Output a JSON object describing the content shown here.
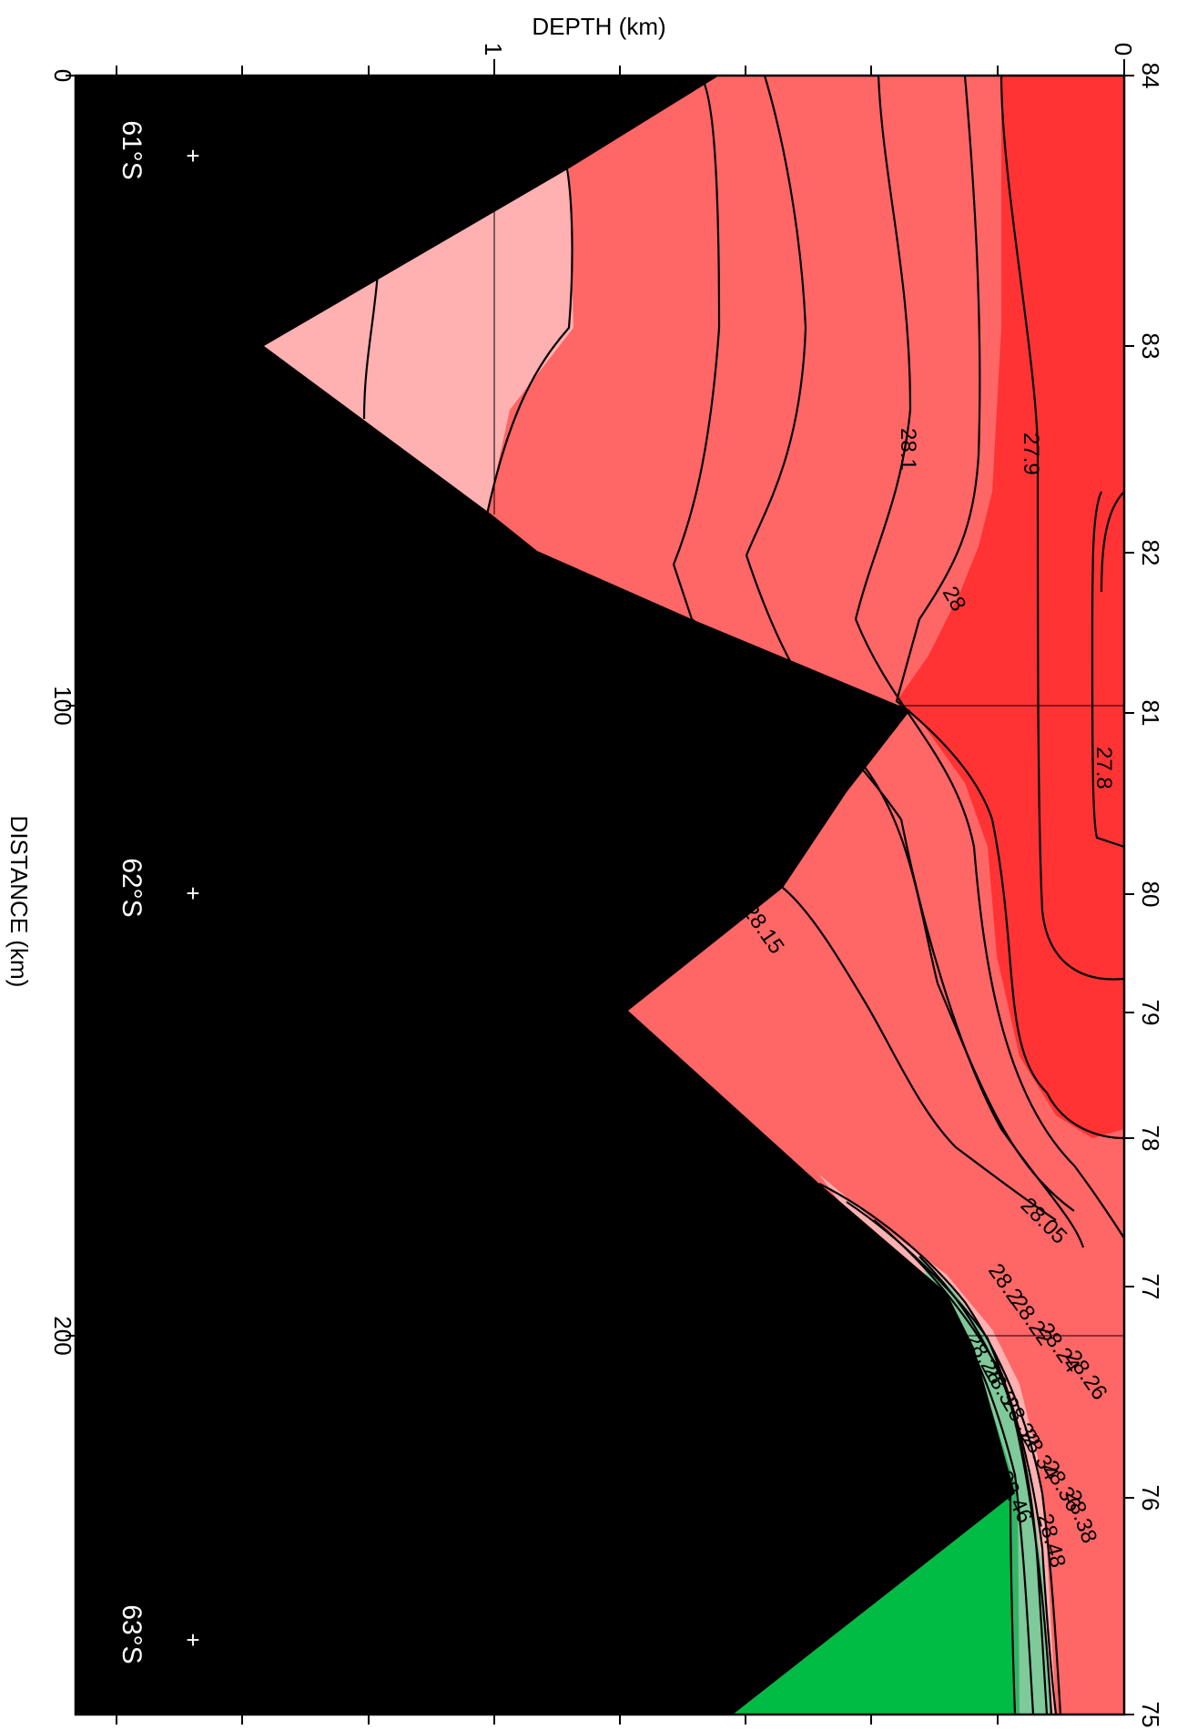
{
  "chart_data": {
    "type": "contour",
    "title": "",
    "xlabel": "DEPTH (km)",
    "ylabel": "DISTANCE (km)",
    "xlim": [
      1.7,
      0
    ],
    "ylim": [
      0,
      265
    ],
    "x_ticks": [
      "1",
      "0"
    ],
    "y_ticks": [
      "0",
      "100",
      "200"
    ],
    "right_axis_ticks": [
      "84",
      "83",
      "82",
      "81",
      "80",
      "79",
      "78",
      "77",
      "76",
      "75"
    ],
    "latitude_markers": [
      "61°S",
      "62°S",
      "63°S"
    ],
    "contour_labels": [
      "27.8",
      "27.9",
      "28",
      "28.05",
      "28.1",
      "28.15",
      "28.2",
      "28.22",
      "28.24",
      "28.26",
      "28.28",
      "28.3",
      "28.32",
      "28.34",
      "28.36",
      "28.38",
      "28.4",
      "28.42",
      "28.44",
      "28.46",
      "28.48"
    ],
    "colors": {
      "deep_red": "#ff3333",
      "red": "#ff6666",
      "light_red": "#ffb0b0",
      "light_green": "#7fc99a",
      "green": "#33b566",
      "bright_green": "#00bb44",
      "bathymetry": "#000000"
    }
  }
}
